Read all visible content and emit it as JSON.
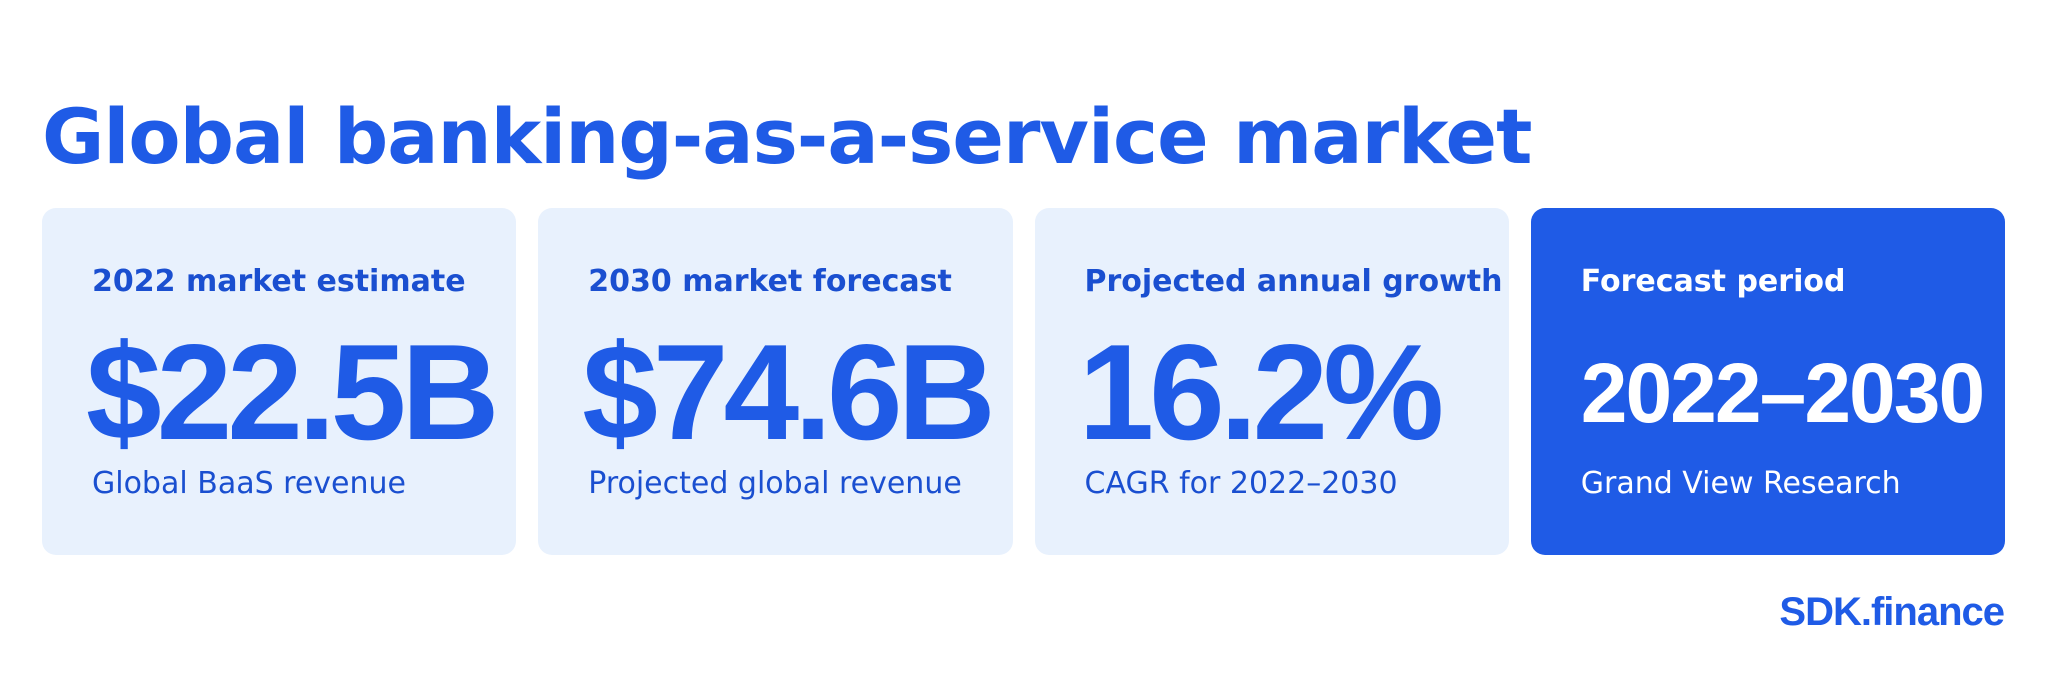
{
  "title": "Global banking-as-a-service market",
  "cards": [
    {
      "label": "2022 market estimate",
      "value": "$22.5B",
      "sub": "Global BaaS revenue"
    },
    {
      "label": "2030 market forecast",
      "value": "$74.6B",
      "sub": "Projected global revenue"
    },
    {
      "label": "Projected annual growth",
      "value": "16.2%",
      "sub": "CAGR for 2022–2030"
    },
    {
      "label": "Forecast period",
      "value": "2022–2030",
      "sub": "Grand View Research"
    }
  ],
  "brand": "SDK.finance",
  "colors": {
    "accent": "#1f5be6",
    "card_background": "#e8f1fd",
    "text_on_card": "#1a4fd0",
    "text_on_accent": "#ffffff"
  }
}
